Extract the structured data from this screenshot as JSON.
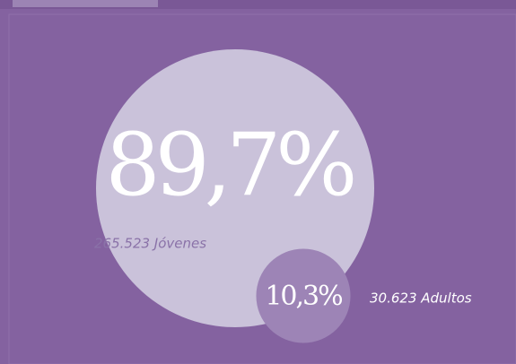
{
  "chart_data": {
    "type": "bubble",
    "values": [
      89.7,
      10.3
    ],
    "value_labels": [
      "89,7%",
      "10,3%"
    ],
    "captions": [
      "265.523 Jóvenes",
      "30.623 Adultos"
    ],
    "colors": [
      "#cac2da",
      "#9d84b6"
    ]
  }
}
